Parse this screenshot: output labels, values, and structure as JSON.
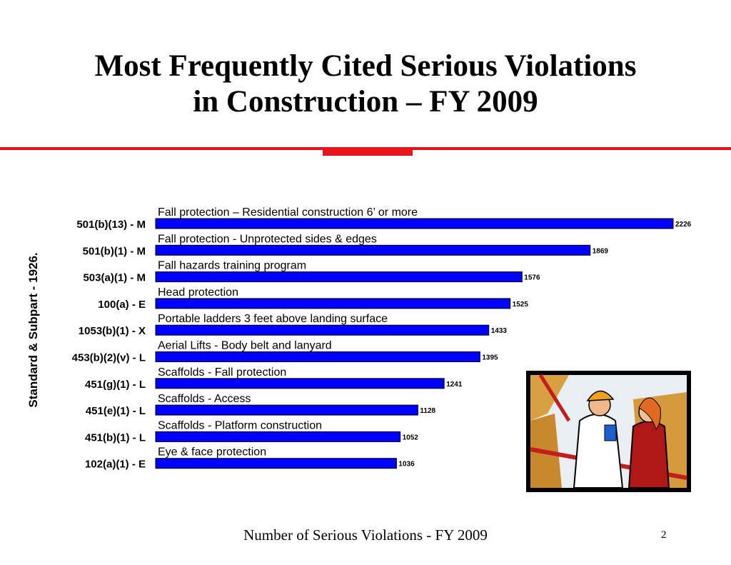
{
  "slide": {
    "title_line1": "Most Frequently Cited Serious Violations",
    "title_line2": "in Construction – FY 2009",
    "footer": "Number of Serious Violations - FY 2009",
    "page_number": "2",
    "accent_color": "#e8141c",
    "clipart": "construction-workers-clipart"
  },
  "chart_data": {
    "type": "bar",
    "orientation": "horizontal",
    "ylabel": "Standard & Subpart - 1926.",
    "xlabel": "Number of Serious Violations - FY 2009",
    "bar_color": "#0000ff",
    "categories": [
      "501(b)(13) - M",
      "501(b)(1) - M",
      "503(a)(1) - M",
      "100(a) - E",
      "1053(b)(1) - X",
      "453(b)(2)(v) - L",
      "451(g)(1) - L",
      "451(e)(1) - L",
      "451(b)(1) - L",
      "102(a)(1) - E"
    ],
    "descriptions": [
      "Fall protection – Residential construction 6’ or more",
      "Fall protection - Unprotected sides & edges",
      "Fall hazards training program",
      "Head protection",
      "Portable ladders 3 feet above landing surface",
      "Aerial Lifts - Body belt and lanyard",
      "Scaffolds - Fall protection",
      "Scaffolds - Access",
      "Scaffolds - Platform construction",
      "Eye & face protection"
    ],
    "values": [
      2226,
      1869,
      1576,
      1525,
      1433,
      1395,
      1241,
      1128,
      1052,
      1036
    ],
    "xlim": [
      0,
      2226
    ]
  }
}
